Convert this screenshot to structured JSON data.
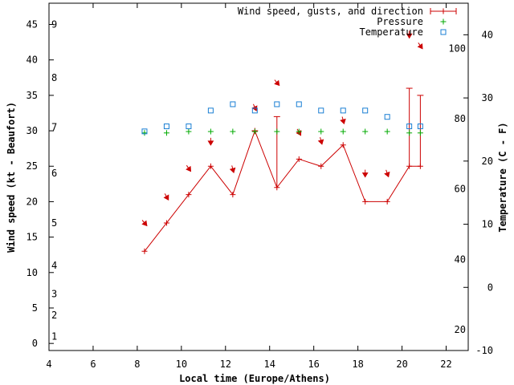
{
  "chart_data": {
    "type": "line",
    "xlabel": "Local time (Europe/Athens)",
    "ylabel_left": "Wind speed (kt - Beaufort)",
    "ylabel_right": "Temperature (C - F)",
    "x_range": [
      4,
      23
    ],
    "y_left_range": [
      -1,
      48
    ],
    "y_right_range": [
      -10,
      45
    ],
    "x_ticks": [
      4,
      6,
      8,
      10,
      12,
      14,
      16,
      18,
      20,
      22
    ],
    "y_left_ticks": [
      0,
      5,
      10,
      15,
      20,
      25,
      30,
      35,
      40,
      45
    ],
    "y_right_ticks": [
      -10,
      0,
      10,
      20,
      30,
      40
    ],
    "beaufort_labels": [
      {
        "label": "1",
        "kt": 1.0
      },
      {
        "label": "2",
        "kt": 4.0
      },
      {
        "label": "3",
        "kt": 7.0
      },
      {
        "label": "4",
        "kt": 11.0
      },
      {
        "label": "5",
        "kt": 17.0
      },
      {
        "label": "6",
        "kt": 24.0
      },
      {
        "label": "7",
        "kt": 30.5
      },
      {
        "label": "8",
        "kt": 37.5
      },
      {
        "label": "9",
        "kt": 45.0
      }
    ],
    "fahrenheit_labels": [
      {
        "label": "20",
        "c": -6.7
      },
      {
        "label": "40",
        "c": 4.4
      },
      {
        "label": "60",
        "c": 15.6
      },
      {
        "label": "80",
        "c": 26.7
      },
      {
        "label": "100",
        "c": 37.8
      }
    ],
    "legend": [
      {
        "label": "Wind speed, gusts, and direction",
        "color": "#cc0000"
      },
      {
        "label": "Pressure",
        "color": "#00aa00"
      },
      {
        "label": "Temperature",
        "color": "#1a7fd4"
      }
    ],
    "wind": {
      "name": "Wind speed, gusts, and direction",
      "color": "#cc0000",
      "x": [
        8.33,
        9.33,
        10.33,
        11.33,
        12.33,
        13.33,
        14.33,
        15.33,
        16.33,
        17.33,
        18.33,
        19.33,
        20.33,
        20.83
      ],
      "y": [
        13,
        17,
        21,
        25,
        21,
        30,
        22,
        26,
        25,
        28,
        20,
        20,
        25,
        25
      ],
      "gusts": [
        null,
        null,
        null,
        null,
        null,
        30,
        32,
        null,
        null,
        null,
        null,
        null,
        36,
        35
      ],
      "direction_deg": [
        320,
        330,
        325,
        0,
        345,
        335,
        320,
        330,
        345,
        345,
        0,
        340,
        0,
        325
      ],
      "arrow_kt": [
        17,
        20.7,
        24.7,
        28.5,
        24.6,
        33.3,
        36.8,
        29.8,
        28.6,
        31.5,
        24,
        24,
        43.6,
        42
      ]
    },
    "pressure": {
      "name": "Pressure",
      "color": "#00aa00",
      "x": [
        8.33,
        9.33,
        10.33,
        11.33,
        12.33,
        13.33,
        14.33,
        15.33,
        16.33,
        17.33,
        18.33,
        19.33,
        20.33,
        20.83
      ],
      "y": [
        29.7,
        29.7,
        29.9,
        29.9,
        29.9,
        29.9,
        29.9,
        29.9,
        29.9,
        29.9,
        29.9,
        29.9,
        29.7,
        29.7
      ]
    },
    "temperature": {
      "name": "Temperature",
      "color": "#1a7fd4",
      "x": [
        8.33,
        9.33,
        10.33,
        11.33,
        12.33,
        13.33,
        14.33,
        15.33,
        16.33,
        17.33,
        18.33,
        19.33,
        20.33,
        20.83
      ],
      "y": [
        24.7,
        25.5,
        25.5,
        28.0,
        29.0,
        28.0,
        29.0,
        29.0,
        28.0,
        28.0,
        28.0,
        27.0,
        25.5,
        25.5
      ]
    }
  }
}
